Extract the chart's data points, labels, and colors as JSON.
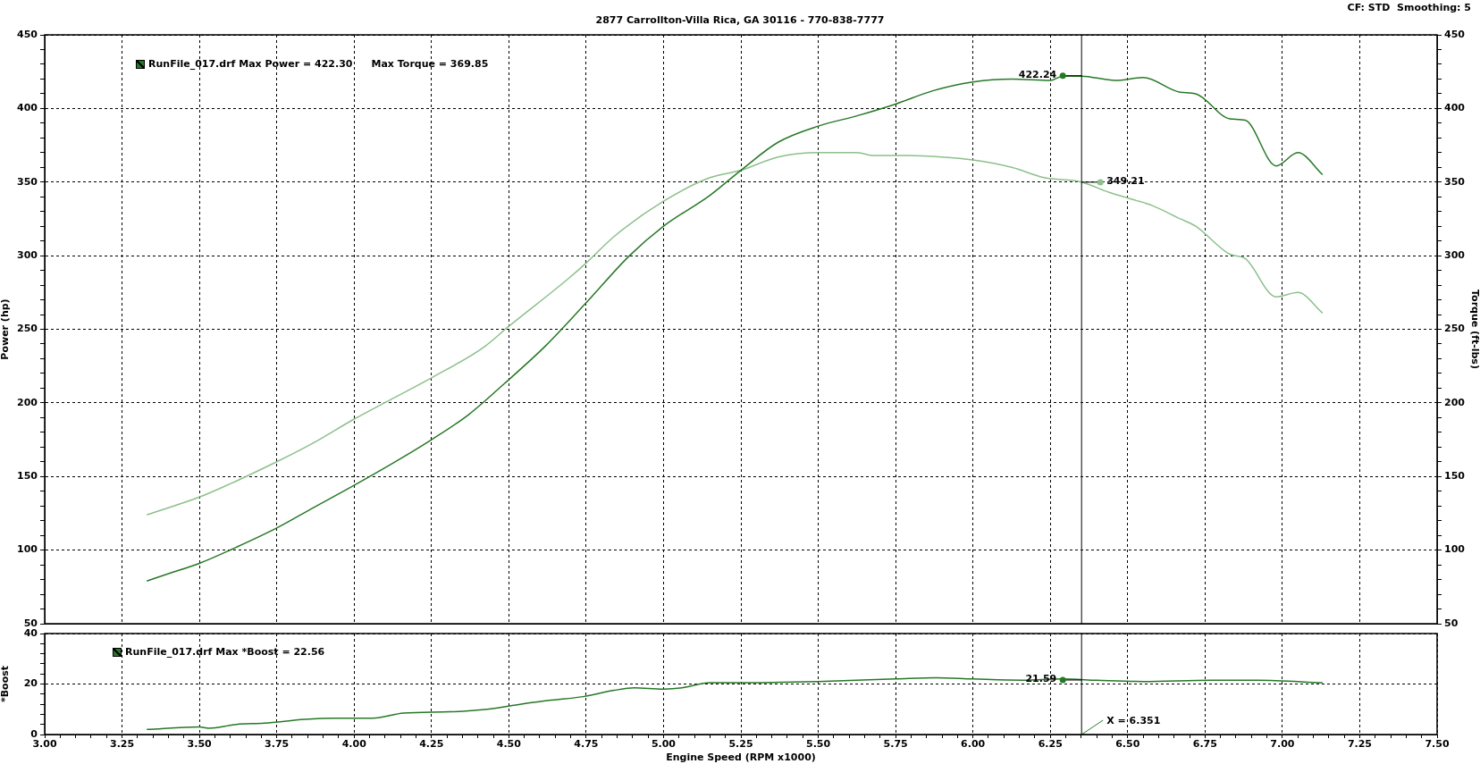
{
  "chart_data": [
    {
      "type": "line",
      "subtitle": "2877 Carrollton-Villa Rica, GA 30116 - 770-838-7777",
      "ylabel": "Power (hp)",
      "y2label": "Torque (ft-lbs)",
      "annotations": [
        "CF: STD  Smoothing: 5",
        "RunFile_017.drf Max Power = 422.30",
        "Max Torque = 369.85",
        {
          "text": "422.24",
          "y": 422.24
        },
        "349.21"
      ],
      "series": [
        {
          "color": "#267826",
          "x": [
            3.33,
            3.4,
            3.5,
            3.62,
            3.75,
            3.87,
            4,
            4.125,
            4.25,
            4.37,
            4.485,
            4.62,
            4.75,
            4.89,
            5,
            5.15,
            5.25,
            5.37,
            5.5,
            5.625,
            5.75,
            5.87,
            6,
            6.125,
            6.25,
            6.29,
            6.35,
            6.46,
            6.55,
            6.67,
            6.72,
            6.83,
            6.88,
            6.98,
            7.05,
            7.13
          ],
          "values": [
            79,
            84,
            91,
            102,
            115,
            129,
            144,
            159,
            175,
            192,
            213,
            239,
            268,
            300,
            320,
            341,
            358,
            377,
            388,
            395,
            403,
            412,
            418,
            420,
            419,
            422,
            422,
            419,
            421,
            411,
            410,
            393,
            392,
            361,
            370,
            355
          ]
        },
        {
          "color": "#8cc08c",
          "axis": "y2",
          "x": [
            3.33,
            3.5,
            3.62,
            3.75,
            3.87,
            4,
            4.125,
            4.25,
            4.42,
            4.5,
            4.69,
            4.75,
            4.84,
            5,
            5.15,
            5.25,
            5.37,
            5.5,
            5.625,
            5.68,
            5.79,
            5.9,
            6,
            6.125,
            6.23,
            6.35,
            6.44,
            6.52,
            6.58,
            6.67,
            6.72,
            6.83,
            6.88,
            6.98,
            7.05,
            7.13
          ],
          "values": [
            124,
            136,
            147,
            160,
            173,
            189,
            203,
            217,
            238,
            252,
            284,
            295,
            313,
            337,
            353,
            358,
            367,
            370,
            370,
            368,
            368,
            367,
            365,
            360,
            353,
            350,
            343,
            338,
            334,
            325,
            320,
            301,
            298,
            272,
            275,
            261
          ]
        }
      ],
      "xlim": [
        3,
        7.5
      ],
      "xticks": [
        3,
        3.25,
        3.5,
        3.75,
        4,
        4.25,
        4.5,
        4.75,
        5,
        5.25,
        5.5,
        5.75,
        6,
        6.25,
        6.5,
        6.75,
        7,
        7.25,
        7.5
      ],
      "ylim": [
        50,
        450
      ],
      "yticks": [
        50,
        {
          "value": 60,
          "label": null
        },
        {
          "value": 70,
          "label": null
        },
        {
          "value": 80,
          "label": null
        },
        {
          "value": 90,
          "label": null
        },
        100,
        {
          "value": 110,
          "label": null
        },
        {
          "value": 120,
          "label": null
        },
        {
          "value": 130,
          "label": null
        },
        {
          "value": 140,
          "label": null
        },
        150,
        {
          "value": 160,
          "label": null
        },
        {
          "value": 170,
          "label": null
        },
        {
          "value": 180,
          "label": null
        },
        {
          "value": 190,
          "label": null
        },
        200,
        {
          "value": 210,
          "label": null
        },
        {
          "value": 220,
          "label": null
        },
        {
          "value": 230,
          "label": null
        },
        {
          "value": 240,
          "label": null
        },
        250,
        {
          "value": 260,
          "label": null
        },
        {
          "value": 270,
          "label": null
        },
        {
          "value": 280,
          "label": null
        },
        {
          "value": 290,
          "label": null
        },
        300,
        {
          "value": 310,
          "label": null
        },
        {
          "value": 320,
          "label": null
        },
        {
          "value": 330,
          "label": null
        },
        {
          "value": 340,
          "label": null
        },
        350,
        {
          "value": 360,
          "label": null
        },
        {
          "value": 370,
          "label": null
        },
        {
          "value": 380,
          "label": null
        },
        {
          "value": 390,
          "label": null
        },
        400,
        {
          "value": 410,
          "label": null
        },
        {
          "value": 420,
          "label": null
        },
        {
          "value": 430,
          "label": null
        },
        {
          "value": 440,
          "label": null
        },
        450
      ],
      "y2lim": [
        50,
        450
      ],
      "y2ticks": [
        50,
        {
          "value": 60,
          "label": null
        },
        {
          "value": 70,
          "label": null
        },
        {
          "value": 80,
          "label": null
        },
        {
          "value": 90,
          "label": null
        },
        100,
        {
          "value": 110,
          "label": null
        },
        {
          "value": 120,
          "label": null
        },
        {
          "value": 130,
          "label": null
        },
        {
          "value": 140,
          "label": null
        },
        150,
        {
          "value": 160,
          "label": null
        },
        {
          "value": 170,
          "label": null
        },
        {
          "value": 180,
          "label": null
        },
        {
          "value": 190,
          "label": null
        },
        200,
        {
          "value": 210,
          "label": null
        },
        {
          "value": 220,
          "label": null
        },
        {
          "value": 230,
          "label": null
        },
        {
          "value": 240,
          "label": null
        },
        250,
        {
          "value": 260,
          "label": null
        },
        {
          "value": 270,
          "label": null
        },
        {
          "value": 280,
          "label": null
        },
        {
          "value": 290,
          "label": null
        },
        300,
        {
          "value": 310,
          "label": null
        },
        {
          "value": 320,
          "label": null
        },
        {
          "value": 330,
          "label": null
        },
        {
          "value": 340,
          "label": null
        },
        350,
        {
          "value": 360,
          "label": null
        },
        {
          "value": 370,
          "label": null
        },
        {
          "value": 380,
          "label": null
        },
        {
          "value": 390,
          "label": null
        },
        400,
        {
          "value": 410,
          "label": null
        },
        {
          "value": 420,
          "label": null
        },
        {
          "value": 430,
          "label": null
        },
        {
          "value": 440,
          "label": null
        },
        450
      ],
      "ref_lines": [
        {
          "axis": "x",
          "value": 6.351,
          "color": "#000000"
        }
      ],
      "grid": true,
      "tick_labels": "y"
    },
    {
      "type": "line",
      "xlabel": "Engine Speed (RPM x1000)",
      "ylabel": "*Boost",
      "annotations": [
        "RunFile_017.drf Max *Boost = 22.56",
        {
          "text": "21.59",
          "y": 21.59
        }
      ],
      "series": [
        {
          "color": "#267826",
          "x": [
            3.33,
            3.5,
            3.53,
            3.62,
            3.71,
            3.84,
            3.93,
            4.06,
            4.16,
            4.31,
            4.43,
            4.54,
            4.63,
            4.74,
            4.84,
            4.905,
            5,
            5.06,
            5.15,
            5.24,
            5.5,
            5.75,
            5.88,
            6,
            6.16,
            6.29,
            6.4,
            6.55,
            6.77,
            6.92,
            7.13
          ],
          "values": [
            2,
            3,
            2.5,
            4,
            4.5,
            6,
            6.5,
            6.5,
            8.5,
            9,
            10,
            12,
            13.5,
            15,
            17.5,
            18.5,
            18,
            18.5,
            20.5,
            20.5,
            21,
            22,
            22.5,
            22,
            21.5,
            22,
            21.5,
            21,
            21.5,
            21.5,
            20.5
          ]
        }
      ],
      "xlim": [
        3,
        7.5
      ],
      "xticks": [
        {
          "value": 3,
          "label": "3.00"
        },
        {
          "value": 3.05,
          "label": null
        },
        {
          "value": 3.1,
          "label": null
        },
        {
          "value": 3.15,
          "label": null
        },
        {
          "value": 3.2,
          "label": null
        },
        {
          "value": 3.25,
          "label": "3.25"
        },
        {
          "value": 3.3,
          "label": null
        },
        {
          "value": 3.35,
          "label": null
        },
        {
          "value": 3.4,
          "label": null
        },
        {
          "value": 3.45,
          "label": null
        },
        {
          "value": 3.5,
          "label": "3.50"
        },
        {
          "value": 3.55,
          "label": null
        },
        {
          "value": 3.6,
          "label": null
        },
        {
          "value": 3.65,
          "label": null
        },
        {
          "value": 3.7,
          "label": null
        },
        {
          "value": 3.75,
          "label": "3.75"
        },
        {
          "value": 3.8,
          "label": null
        },
        {
          "value": 3.85,
          "label": null
        },
        {
          "value": 3.9,
          "label": null
        },
        {
          "value": 3.95,
          "label": null
        },
        {
          "value": 4,
          "label": "4.00"
        },
        {
          "value": 4.05,
          "label": null
        },
        {
          "value": 4.1,
          "label": null
        },
        {
          "value": 4.15,
          "label": null
        },
        {
          "value": 4.2,
          "label": null
        },
        {
          "value": 4.25,
          "label": "4.25"
        },
        {
          "value": 4.3,
          "label": null
        },
        {
          "value": 4.35,
          "label": null
        },
        {
          "value": 4.4,
          "label": null
        },
        {
          "value": 4.45,
          "label": null
        },
        {
          "value": 4.5,
          "label": "4.50"
        },
        {
          "value": 4.55,
          "label": null
        },
        {
          "value": 4.6,
          "label": null
        },
        {
          "value": 4.65,
          "label": null
        },
        {
          "value": 4.7,
          "label": null
        },
        {
          "value": 4.75,
          "label": "4.75"
        },
        {
          "value": 4.8,
          "label": null
        },
        {
          "value": 4.85,
          "label": null
        },
        {
          "value": 4.9,
          "label": null
        },
        {
          "value": 4.95,
          "label": null
        },
        {
          "value": 5,
          "label": "5.00"
        },
        {
          "value": 5.05,
          "label": null
        },
        {
          "value": 5.1,
          "label": null
        },
        {
          "value": 5.15,
          "label": null
        },
        {
          "value": 5.2,
          "label": null
        },
        {
          "value": 5.25,
          "label": "5.25"
        },
        {
          "value": 5.3,
          "label": null
        },
        {
          "value": 5.35,
          "label": null
        },
        {
          "value": 5.4,
          "label": null
        },
        {
          "value": 5.45,
          "label": null
        },
        {
          "value": 5.5,
          "label": "5.50"
        },
        {
          "value": 5.55,
          "label": null
        },
        {
          "value": 5.6,
          "label": null
        },
        {
          "value": 5.65,
          "label": null
        },
        {
          "value": 5.7,
          "label": null
        },
        {
          "value": 5.75,
          "label": "5.75"
        },
        {
          "value": 5.8,
          "label": null
        },
        {
          "value": 5.85,
          "label": null
        },
        {
          "value": 5.9,
          "label": null
        },
        {
          "value": 5.95,
          "label": null
        },
        {
          "value": 6,
          "label": "6.00"
        },
        {
          "value": 6.05,
          "label": null
        },
        {
          "value": 6.1,
          "label": null
        },
        {
          "value": 6.15,
          "label": null
        },
        {
          "value": 6.2,
          "label": null
        },
        {
          "value": 6.25,
          "label": "6.25"
        },
        {
          "value": 6.3,
          "label": null
        },
        {
          "value": 6.35,
          "label": null
        },
        {
          "value": 6.4,
          "label": null
        },
        {
          "value": 6.45,
          "label": null
        },
        {
          "value": 6.5,
          "label": "6.50"
        },
        {
          "value": 6.55,
          "label": null
        },
        {
          "value": 6.6,
          "label": null
        },
        {
          "value": 6.65,
          "label": null
        },
        {
          "value": 6.7,
          "label": null
        },
        {
          "value": 6.75,
          "label": "6.75"
        },
        {
          "value": 6.8,
          "label": null
        },
        {
          "value": 6.85,
          "label": null
        },
        {
          "value": 6.9,
          "label": null
        },
        {
          "value": 6.95,
          "label": null
        },
        {
          "value": 7,
          "label": "7.00"
        },
        {
          "value": 7.05,
          "label": null
        },
        {
          "value": 7.1,
          "label": null
        },
        {
          "value": 7.15,
          "label": null
        },
        {
          "value": 7.2,
          "label": null
        },
        {
          "value": 7.25,
          "label": "7.25"
        },
        {
          "value": 7.3,
          "label": null
        },
        {
          "value": 7.35,
          "label": null
        },
        {
          "value": 7.4,
          "label": null
        },
        {
          "value": 7.45,
          "label": null
        },
        {
          "value": 7.5,
          "label": "7.50"
        }
      ],
      "ylim": [
        0,
        40
      ],
      "yticks": [
        0,
        {
          "value": 4,
          "label": null
        },
        {
          "value": 8,
          "label": null
        },
        {
          "value": 12,
          "label": null
        },
        {
          "value": 16,
          "label": null
        },
        20,
        {
          "value": 24,
          "label": null
        },
        {
          "value": 28,
          "label": null
        },
        {
          "value": 32,
          "label": null
        },
        {
          "value": 36,
          "label": null
        },
        40
      ],
      "ref_lines": [
        {
          "axis": "x",
          "value": 6.351,
          "label": "X = 6.351",
          "color": "#000000"
        }
      ],
      "grid": true
    }
  ]
}
